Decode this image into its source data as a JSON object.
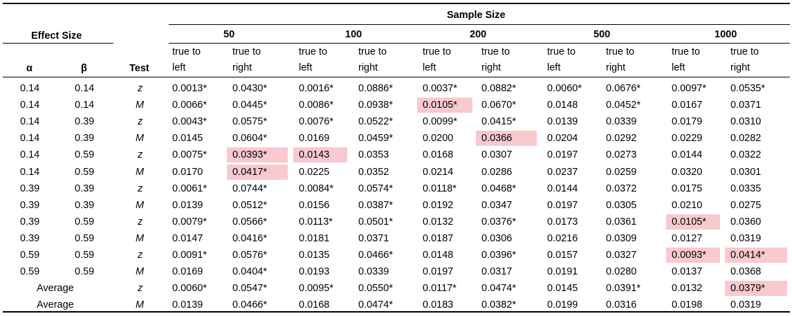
{
  "header": {
    "sample_size_label": "Sample Size",
    "effect_size_label": "Effect Size",
    "alpha_label": "α",
    "beta_label": "β",
    "test_label": "Test",
    "sizes": [
      "50",
      "100",
      "200",
      "500",
      "1000"
    ],
    "sub_left_line1": "true to",
    "sub_left_line2": "left",
    "sub_right_line1": "true to",
    "sub_right_line2": "right"
  },
  "highlight_color": "#f8c9cf",
  "rows": [
    {
      "alpha": "0.14",
      "beta": "0.14",
      "test": "z",
      "values": [
        "0.0013*",
        "0.0430*",
        "0.0016*",
        "0.0886*",
        "0.0037*",
        "0.0882*",
        "0.0060*",
        "0.0676*",
        "0.0097*",
        "0.0535*"
      ],
      "highlight": []
    },
    {
      "alpha": "0.14",
      "beta": "0.14",
      "test": "M",
      "values": [
        "0.0066*",
        "0.0445*",
        "0.0086*",
        "0.0938*",
        "0.0105*",
        "0.0670*",
        "0.0148",
        "0.0452*",
        "0.0167",
        "0.0371"
      ],
      "highlight": [
        4
      ]
    },
    {
      "alpha": "0.14",
      "beta": "0.39",
      "test": "z",
      "values": [
        "0.0043*",
        "0.0575*",
        "0.0076*",
        "0.0522*",
        "0.0099*",
        "0.0415*",
        "0.0139",
        "0.0339",
        "0.0179",
        "0.0310"
      ],
      "highlight": []
    },
    {
      "alpha": "0.14",
      "beta": "0.39",
      "test": "M",
      "values": [
        "0.0145",
        "0.0604*",
        "0.0169",
        "0.0459*",
        "0.0200",
        "0.0366",
        "0.0204",
        "0.0292",
        "0.0229",
        "0.0282"
      ],
      "highlight": [
        5
      ]
    },
    {
      "alpha": "0.14",
      "beta": "0.59",
      "test": "z",
      "values": [
        "0.0075*",
        "0.0393*",
        "0.0143",
        "0.0353",
        "0.0168",
        "0.0307",
        "0.0197",
        "0.0273",
        "0.0144",
        "0.0322"
      ],
      "highlight": [
        1,
        2
      ]
    },
    {
      "alpha": "0.14",
      "beta": "0.59",
      "test": "M",
      "values": [
        "0.0170",
        "0.0417*",
        "0.0225",
        "0.0352",
        "0.0214",
        "0.0286",
        "0.0237",
        "0.0259",
        "0.0320",
        "0.0301"
      ],
      "highlight": [
        1
      ]
    },
    {
      "alpha": "0.39",
      "beta": "0.39",
      "test": "z",
      "values": [
        "0.0061*",
        "0.0744*",
        "0.0084*",
        "0.0574*",
        "0.0118*",
        "0.0468*",
        "0.0144",
        "0.0372",
        "0.0175",
        "0.0335"
      ],
      "highlight": []
    },
    {
      "alpha": "0.39",
      "beta": "0.39",
      "test": "M",
      "values": [
        "0.0139",
        "0.0512*",
        "0.0156",
        "0.0387*",
        "0.0192",
        "0.0347",
        "0.0197",
        "0.0305",
        "0.0210",
        "0.0275"
      ],
      "highlight": []
    },
    {
      "alpha": "0.39",
      "beta": "0.59",
      "test": "z",
      "values": [
        "0.0079*",
        "0.0566*",
        "0.0113*",
        "0.0501*",
        "0.0132",
        "0.0376*",
        "0.0173",
        "0.0361",
        "0.0105*",
        "0.0360"
      ],
      "highlight": [
        8
      ]
    },
    {
      "alpha": "0.39",
      "beta": "0.59",
      "test": "M",
      "values": [
        "0.0147",
        "0.0416*",
        "0.0181",
        "0.0371",
        "0.0187",
        "0.0306",
        "0.0216",
        "0.0309",
        "0.0127",
        "0.0319"
      ],
      "highlight": []
    },
    {
      "alpha": "0.59",
      "beta": "0.59",
      "test": "z",
      "values": [
        "0.0091*",
        "0.0576*",
        "0.0135",
        "0.0466*",
        "0.0148",
        "0.0396*",
        "0.0157",
        "0.0327",
        "0.0093*",
        "0.0414*"
      ],
      "highlight": [
        8,
        9
      ]
    },
    {
      "alpha": "0.59",
      "beta": "0.59",
      "test": "M",
      "values": [
        "0.0169",
        "0.0404*",
        "0.0193",
        "0.0339",
        "0.0197",
        "0.0317",
        "0.0191",
        "0.0280",
        "0.0137",
        "0.0368"
      ],
      "highlight": []
    },
    {
      "label": "Average",
      "test": "z",
      "values": [
        "0.0060*",
        "0.0547*",
        "0.0095*",
        "0.0550*",
        "0.0117*",
        "0.0474*",
        "0.0145",
        "0.0391*",
        "0.0132",
        "0.0379*"
      ],
      "highlight": [
        9
      ]
    },
    {
      "label": "Average",
      "test": "M",
      "values": [
        "0.0139",
        "0.0466*",
        "0.0168",
        "0.0474*",
        "0.0183",
        "0.0382*",
        "0.0199",
        "0.0316",
        "0.0198",
        "0.0319"
      ],
      "highlight": []
    }
  ]
}
